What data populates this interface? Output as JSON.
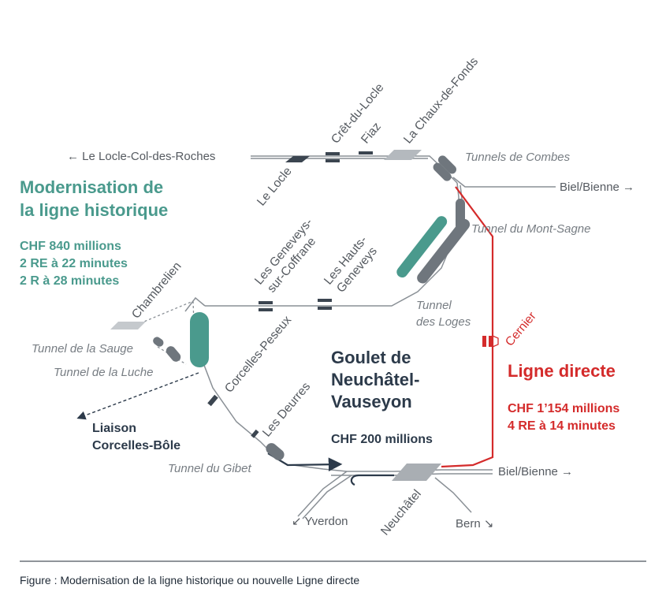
{
  "stations": {
    "le_locle": "Le Locle",
    "cret_du_locle": "Crêt-du-Locle",
    "fiaz": "Fiaz",
    "la_chaux_de_fonds": "La Chaux-de-Fonds",
    "chambrelien": "Chambrelien",
    "geneveys_line1": "Les Geneveys-",
    "geneveys_line2": "sur-Coffrane",
    "hauts_line1": "Les Hauts-",
    "hauts_line2": "Geneveys",
    "corcelles_peseux": "Corcelles-Peseux",
    "les_deurres": "Les Deurres",
    "neuchatel": "Neuchâtel",
    "cernier": "Cernier"
  },
  "directions": {
    "le_locle_col": "← Le Locle-Col-des-Roches",
    "biel_top": "Biel/Bienne →",
    "biel_bottom": "Biel/Bienne →",
    "yverdon": "↙ Yverdon",
    "bern": "Bern ↘"
  },
  "tunnels": {
    "combes": "Tunnels de Combes",
    "mont_sagne": "Tunnel du Mont-Sagne",
    "loges_line1": "Tunnel",
    "loges_line2": "des Loges",
    "sauge": "Tunnel de la Sauge",
    "luche": "Tunnel de la Luche",
    "gibet": "Tunnel du Gibet"
  },
  "historique": {
    "title_line1": "Modernisation de",
    "title_line2": "la ligne historique",
    "cost": "CHF 840 millions",
    "service1": "2 RE à 22 minutes",
    "service2": "2 R à 28 minutes"
  },
  "directe": {
    "title": "Ligne directe",
    "cost": "CHF 1’154 millions",
    "service": "4 RE à 14 minutes"
  },
  "goulet": {
    "title_line1": "Goulet de",
    "title_line2": "Neuchâtel-",
    "title_line3": "Vauseyon",
    "cost": "CHF 200 millions"
  },
  "liaison": {
    "line1": "Liaison",
    "line2": "Corcelles-Bôle"
  },
  "caption": "Figure : Modernisation de la ligne historique ou nouvelle Ligne directe",
  "colors": {
    "historique": "#4a9a8d",
    "directe": "#d42b2b",
    "goulet": "#2c3a4a",
    "track": "#8a9096",
    "tunnel": "#6f767d"
  }
}
